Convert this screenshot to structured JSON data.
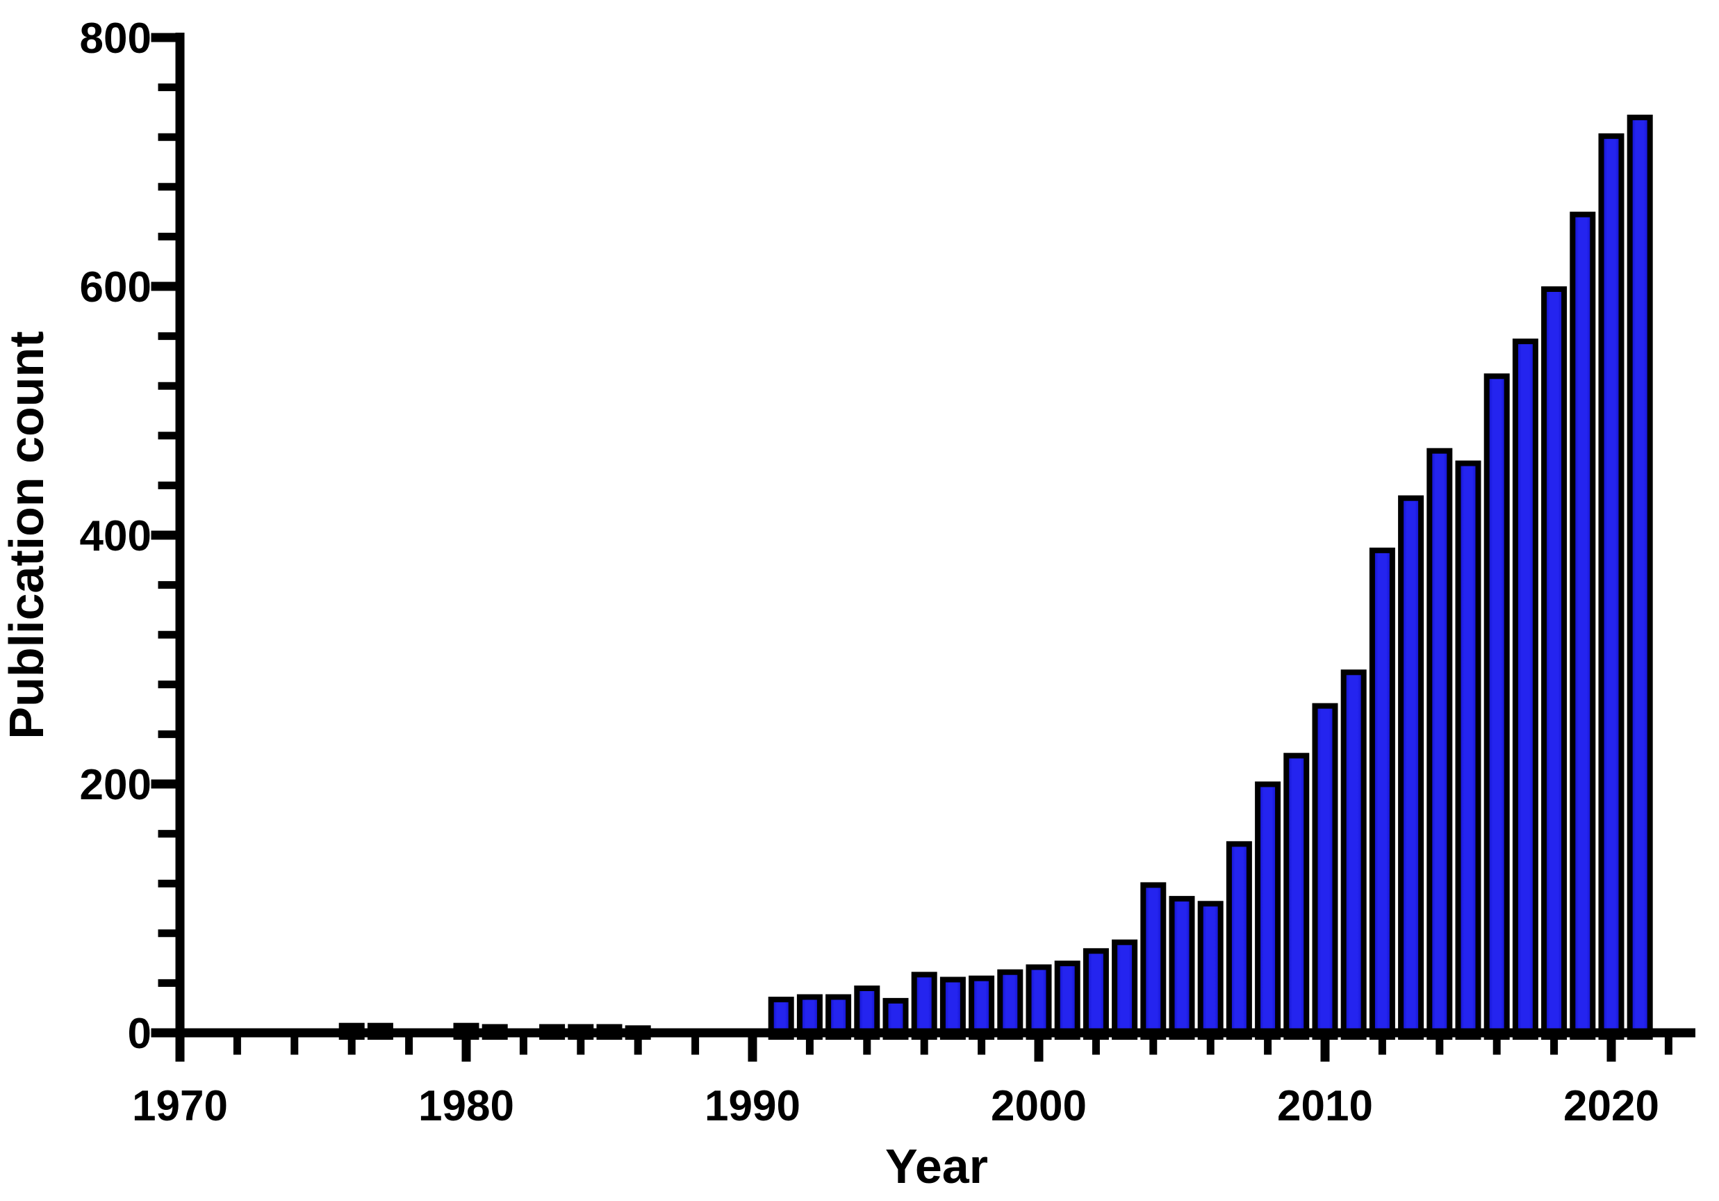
{
  "chart_data": {
    "type": "bar",
    "title": "",
    "xlabel": "Year",
    "ylabel": "Publication count",
    "background": "#ffffff",
    "axis_color": "#000000",
    "bar_color": "#2424ef",
    "bar_edge_glow": "#0d0dc0",
    "bar_outline": "#000000",
    "grid": false,
    "legend": null,
    "xlim": [
      1969,
      2023.3
    ],
    "ylim": [
      0,
      800
    ],
    "x_major_ticks": [
      1970,
      1980,
      1990,
      2000,
      2010,
      2020
    ],
    "x_major_labels": [
      "1970",
      "1980",
      "1990",
      "2000",
      "2010",
      "2020"
    ],
    "x_minor_step_years": 2,
    "y_major_ticks": [
      0,
      200,
      400,
      600,
      800
    ],
    "y_major_labels": [
      "0",
      "200",
      "400",
      "600",
      "800"
    ],
    "y_minor_step": 40,
    "years": [
      1970,
      1971,
      1972,
      1973,
      1974,
      1975,
      1976,
      1977,
      1978,
      1979,
      1980,
      1981,
      1982,
      1983,
      1984,
      1985,
      1986,
      1987,
      1988,
      1989,
      1990,
      1991,
      1992,
      1993,
      1994,
      1995,
      1996,
      1997,
      1998,
      1999,
      2000,
      2001,
      2002,
      2003,
      2004,
      2005,
      2006,
      2007,
      2008,
      2009,
      2010,
      2011,
      2012,
      2013,
      2014,
      2015,
      2016,
      2017,
      2018,
      2019,
      2020,
      2021
    ],
    "values": [
      0,
      0,
      0,
      0,
      0,
      0,
      8,
      8,
      0,
      0,
      8,
      7,
      0,
      7,
      7,
      7,
      6,
      0,
      0,
      0,
      0,
      29,
      31,
      31,
      38,
      28,
      49,
      45,
      46,
      51,
      55,
      58,
      68,
      75,
      121,
      110,
      106,
      154,
      202,
      225,
      265,
      292,
      390,
      432,
      470,
      460,
      530,
      558,
      600,
      660,
      723,
      738
    ]
  }
}
